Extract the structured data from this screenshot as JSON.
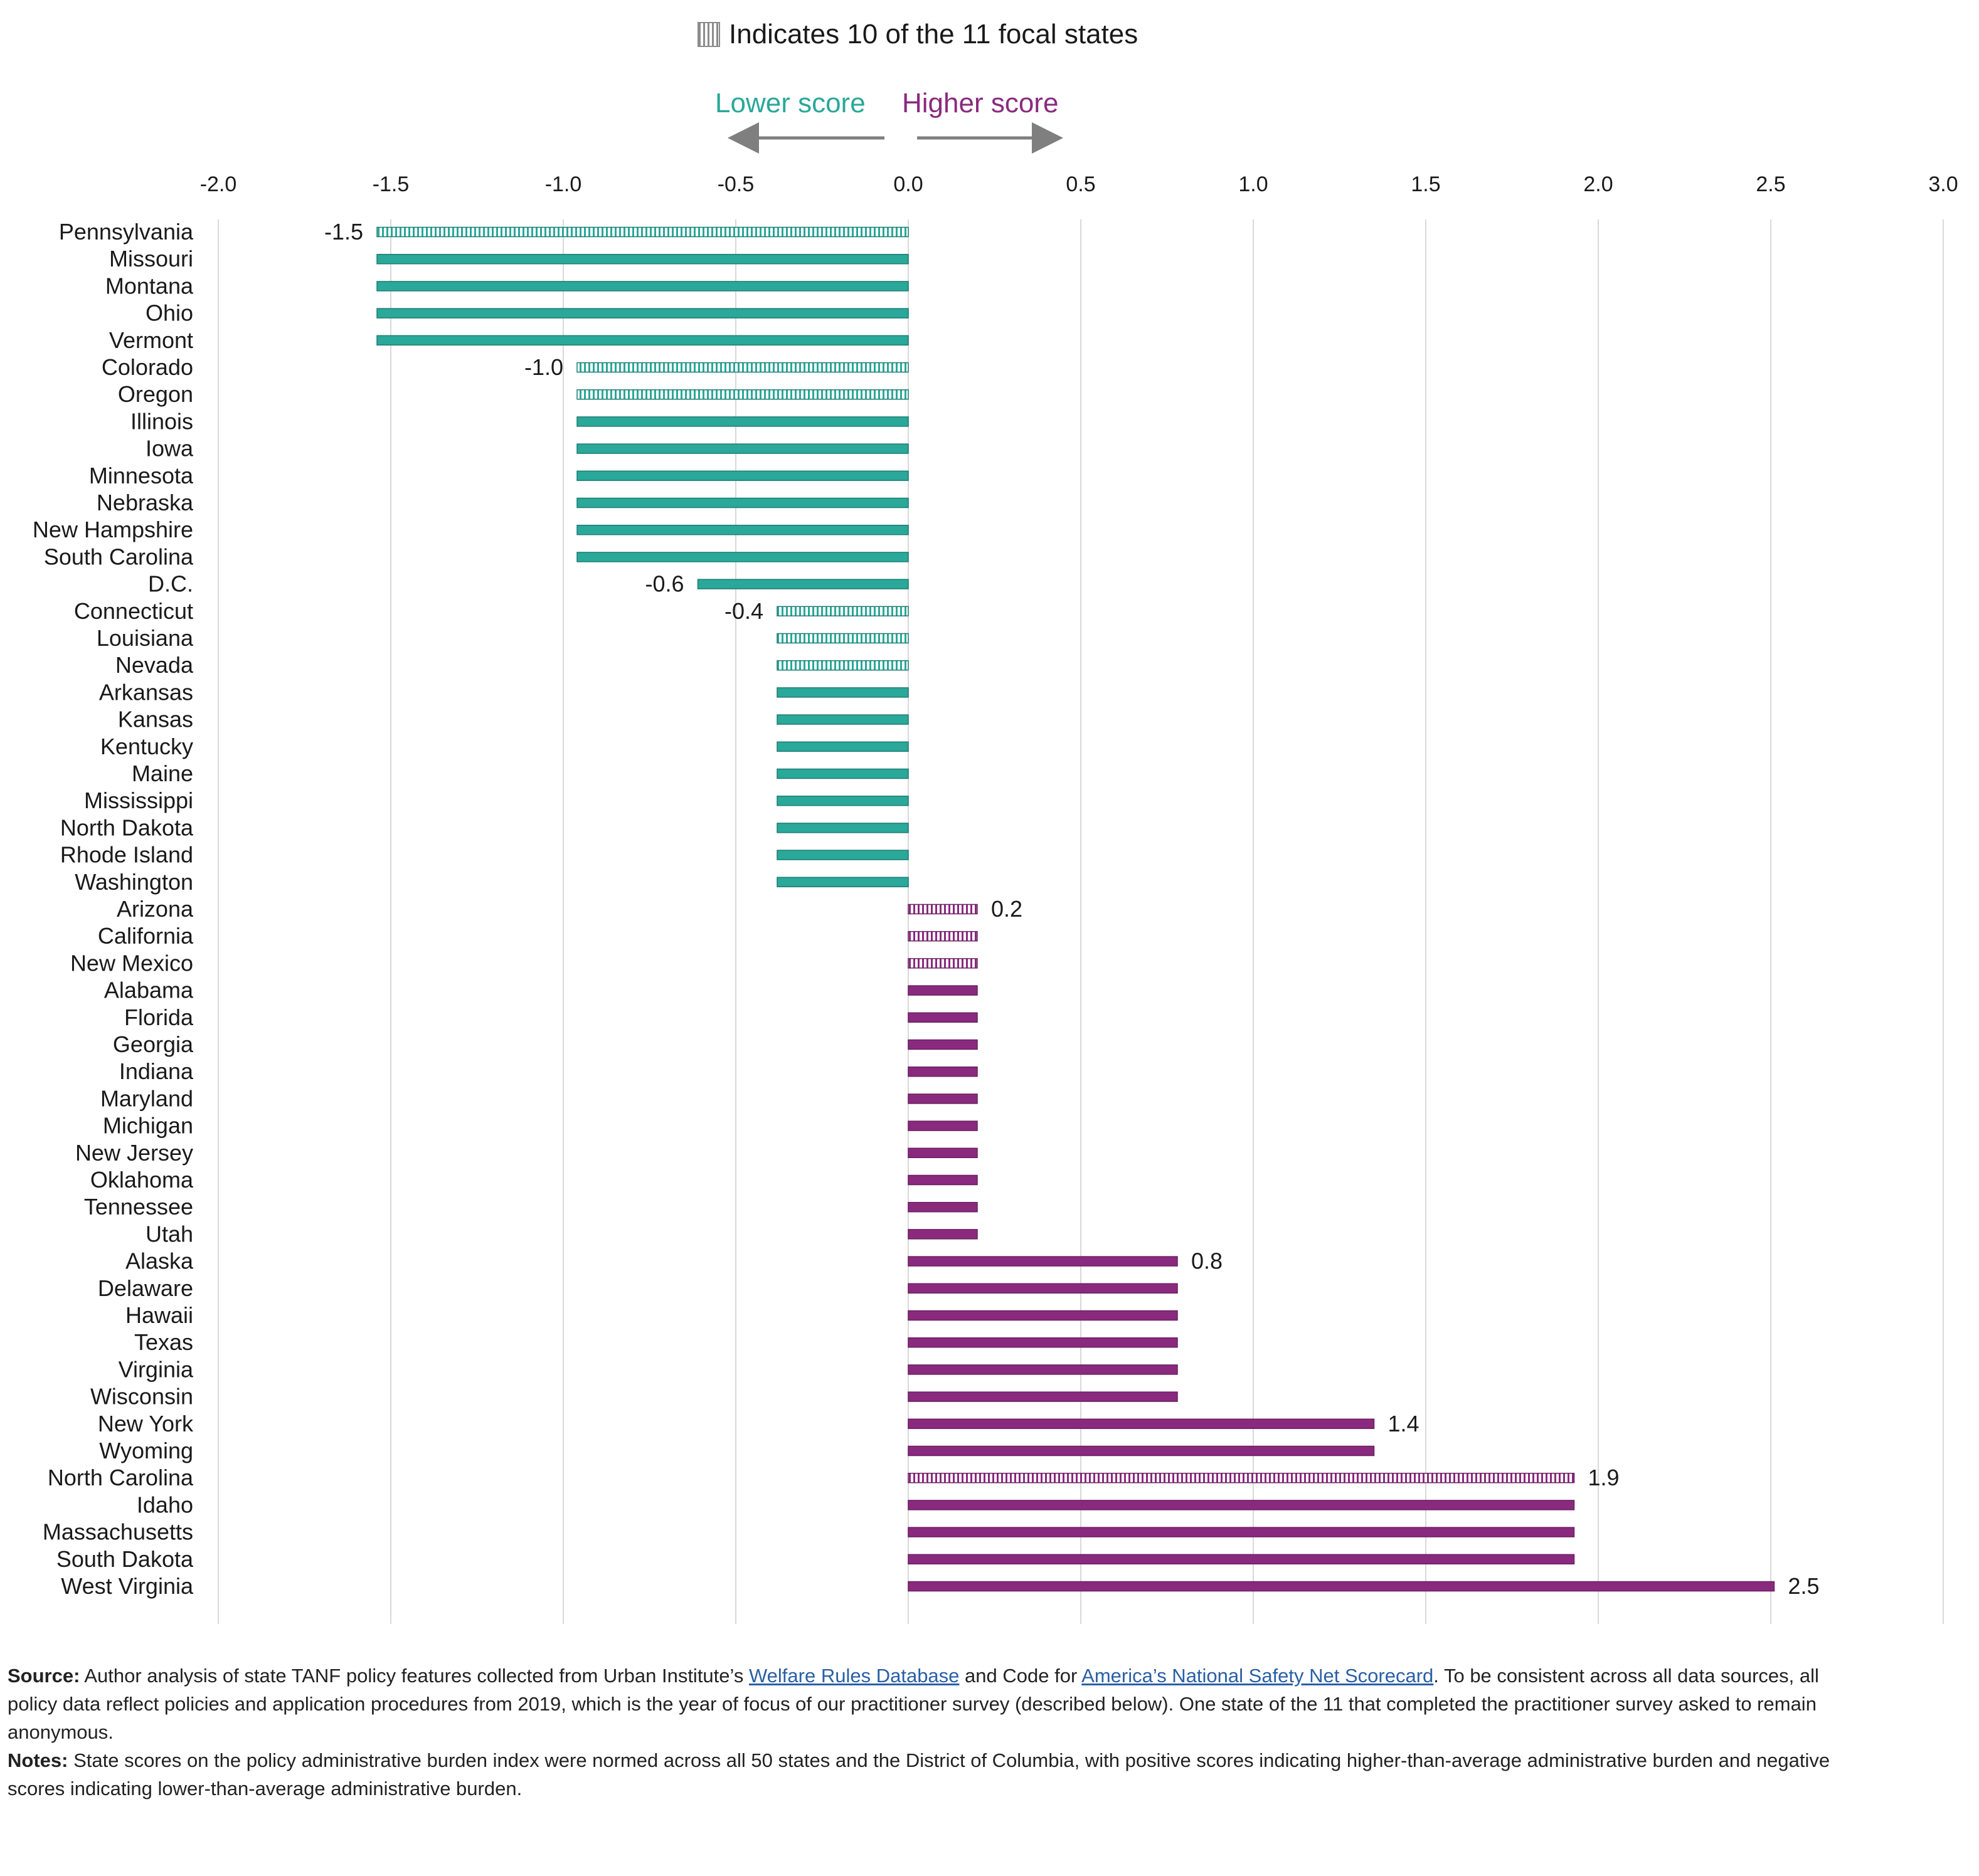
{
  "legend": {
    "text": "Indicates 10 of the 11 focal states",
    "icon": "vertical-hatch-swatch"
  },
  "direction": {
    "lower": "Lower score",
    "higher": "Higher score"
  },
  "colors": {
    "negative": "#2aa899",
    "negative_dark": "#1d7d73",
    "positive": "#8a2a7e",
    "positive_dark": "#6b1f62",
    "arrow": "#7f7f7f",
    "grid": "#d9d9d9"
  },
  "chart_data": {
    "type": "bar",
    "orientation": "horizontal",
    "xlim": [
      -2.0,
      3.0
    ],
    "xticks": [
      "-2.0",
      "-1.5",
      "-1.0",
      "-0.5",
      "0.0",
      "0.5",
      "1.0",
      "1.5",
      "2.0",
      "2.5",
      "3.0"
    ],
    "grid": "vertical",
    "categories": [
      "Pennsylvania",
      "Missouri",
      "Montana",
      "Ohio",
      "Vermont",
      "Colorado",
      "Oregon",
      "Illinois",
      "Iowa",
      "Minnesota",
      "Nebraska",
      "New Hampshire",
      "South Carolina",
      "D.C.",
      "Connecticut",
      "Louisiana",
      "Nevada",
      "Arkansas",
      "Kansas",
      "Kentucky",
      "Maine",
      "Mississippi",
      "North Dakota",
      "Rhode Island",
      "Washington",
      "Arizona",
      "California",
      "New Mexico",
      "Alabama",
      "Florida",
      "Georgia",
      "Indiana",
      "Maryland",
      "Michigan",
      "New Jersey",
      "Oklahoma",
      "Tennessee",
      "Utah",
      "Alaska",
      "Delaware",
      "Hawaii",
      "Texas",
      "Virginia",
      "Wisconsin",
      "New York",
      "Wyoming",
      "North Carolina",
      "Idaho",
      "Massachusetts",
      "South Dakota",
      "West Virginia"
    ],
    "values": [
      -1.54,
      -1.54,
      -1.54,
      -1.54,
      -1.54,
      -0.96,
      -0.96,
      -0.96,
      -0.96,
      -0.96,
      -0.96,
      -0.96,
      -0.96,
      -0.61,
      -0.38,
      -0.38,
      -0.38,
      -0.38,
      -0.38,
      -0.38,
      -0.38,
      -0.38,
      -0.38,
      -0.38,
      -0.38,
      0.2,
      0.2,
      0.2,
      0.2,
      0.2,
      0.2,
      0.2,
      0.2,
      0.2,
      0.2,
      0.2,
      0.2,
      0.2,
      0.78,
      0.78,
      0.78,
      0.78,
      0.78,
      0.78,
      1.35,
      1.35,
      1.93,
      1.93,
      1.93,
      1.93,
      2.51
    ],
    "focal": [
      true,
      false,
      false,
      false,
      false,
      true,
      true,
      false,
      false,
      false,
      false,
      false,
      false,
      false,
      true,
      true,
      true,
      false,
      false,
      false,
      false,
      false,
      false,
      false,
      false,
      true,
      true,
      true,
      false,
      false,
      false,
      false,
      false,
      false,
      false,
      false,
      false,
      false,
      false,
      false,
      false,
      false,
      false,
      false,
      false,
      false,
      true,
      false,
      false,
      false,
      false
    ],
    "data_labels": [
      {
        "index": 0,
        "text": "-1.5"
      },
      {
        "index": 5,
        "text": "-1.0"
      },
      {
        "index": 13,
        "text": "-0.6"
      },
      {
        "index": 14,
        "text": "-0.4"
      },
      {
        "index": 25,
        "text": "0.2"
      },
      {
        "index": 38,
        "text": "0.8"
      },
      {
        "index": 44,
        "text": "1.4"
      },
      {
        "index": 46,
        "text": "1.9"
      },
      {
        "index": 50,
        "text": "2.5"
      }
    ]
  },
  "notes": {
    "source_label": "Source:",
    "source_text_1": " Author analysis of state TANF policy features collected from Urban Institute’s ",
    "source_link_1": "Welfare Rules Database",
    "source_text_2": " and Code for ",
    "source_link_2": "America’s National Safety Net Scorecard",
    "source_text_3": ". To be consistent across all data sources, all policy data reflect policies and application procedures from 2019, which is the year of focus of our practitioner survey (described below). One state of the 11 that completed the practitioner survey asked to remain anonymous.",
    "notes_label": "Notes:",
    "notes_text": " State scores on the policy administrative burden index were normed across all 50 states and the District of Columbia, with positive scores indicating higher-than-average administrative burden and negative scores indicating lower-than-average administrative burden."
  }
}
